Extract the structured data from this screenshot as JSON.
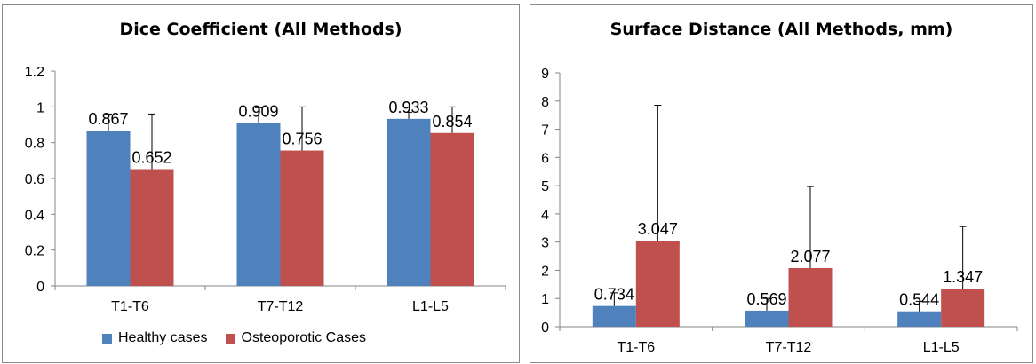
{
  "colors": {
    "series1": "#4f81bd",
    "series2": "#c0504d",
    "axis": "#868686",
    "errorbar": "#000000"
  },
  "legend": [
    {
      "name": "Healthy cases",
      "color": "#4f81bd"
    },
    {
      "name": "Osteoporotic Cases",
      "color": "#c0504d"
    }
  ],
  "chart_data": [
    {
      "type": "bar",
      "title": "Dice Coefficient (All Methods)",
      "categories": [
        "T1-T6",
        "T7-T12",
        "L1-L5"
      ],
      "ylim": [
        0,
        1.2
      ],
      "yticks": [
        "0",
        "0.2",
        "0.4",
        "0.6",
        "0.8",
        "1",
        "1.2"
      ],
      "grid": false,
      "legend_position": "bottom",
      "series": [
        {
          "name": "Healthy cases",
          "values": [
            0.867,
            0.909,
            0.933
          ],
          "labels": [
            "0.867",
            "0.909",
            "0.933"
          ],
          "error_upper": [
            0.96,
            0.995,
            0.97
          ]
        },
        {
          "name": "Osteoporotic Cases",
          "values": [
            0.652,
            0.756,
            0.854
          ],
          "labels": [
            "0.652",
            "0.756",
            "0.854"
          ],
          "error_upper": [
            0.96,
            1.0,
            1.0
          ]
        }
      ]
    },
    {
      "type": "bar",
      "title": "Surface Distance (All Methods, mm)",
      "categories": [
        "T1-T6",
        "T7-T12",
        "L1-L5"
      ],
      "ylim": [
        0,
        9
      ],
      "yticks": [
        "0",
        "1",
        "2",
        "3",
        "4",
        "5",
        "6",
        "7",
        "8",
        "9"
      ],
      "grid": false,
      "legend_position": "none",
      "series": [
        {
          "name": "Healthy cases",
          "values": [
            0.734,
            0.569,
            0.544
          ],
          "labels": [
            "0.734",
            "0.569",
            "0.544"
          ],
          "error_upper": [
            1.2,
            1.0,
            0.9
          ]
        },
        {
          "name": "Osteoporotic Cases",
          "values": [
            3.047,
            2.077,
            1.347
          ],
          "labels": [
            "3.047",
            "2.077",
            "1.347"
          ],
          "error_upper": [
            7.85,
            4.97,
            3.55
          ]
        }
      ]
    }
  ]
}
